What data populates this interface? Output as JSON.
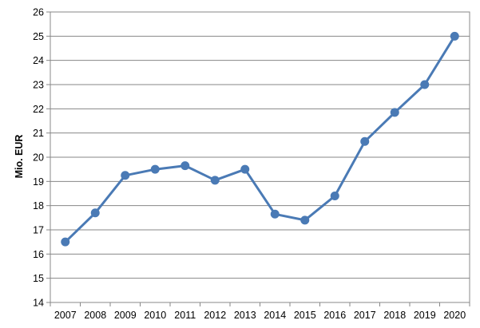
{
  "chart_data": {
    "type": "line",
    "title": "",
    "xlabel": "",
    "ylabel": "Mio. EUR",
    "x": [
      "2007",
      "2008",
      "2009",
      "2010",
      "2011",
      "2012",
      "2013",
      "2014",
      "2015",
      "2016",
      "2017",
      "2018",
      "2019",
      "2020"
    ],
    "series": [
      {
        "values": [
          16.5,
          17.7,
          19.25,
          19.5,
          19.65,
          19.05,
          19.5,
          17.65,
          17.4,
          18.4,
          20.65,
          21.85,
          23.0,
          25.0
        ],
        "color": "#4a7ab5"
      }
    ],
    "ylim": [
      14,
      26
    ],
    "yticks": [
      14,
      15,
      16,
      17,
      18,
      19,
      20,
      21,
      22,
      23,
      24,
      25,
      26
    ],
    "grid": true,
    "legend": "none"
  }
}
